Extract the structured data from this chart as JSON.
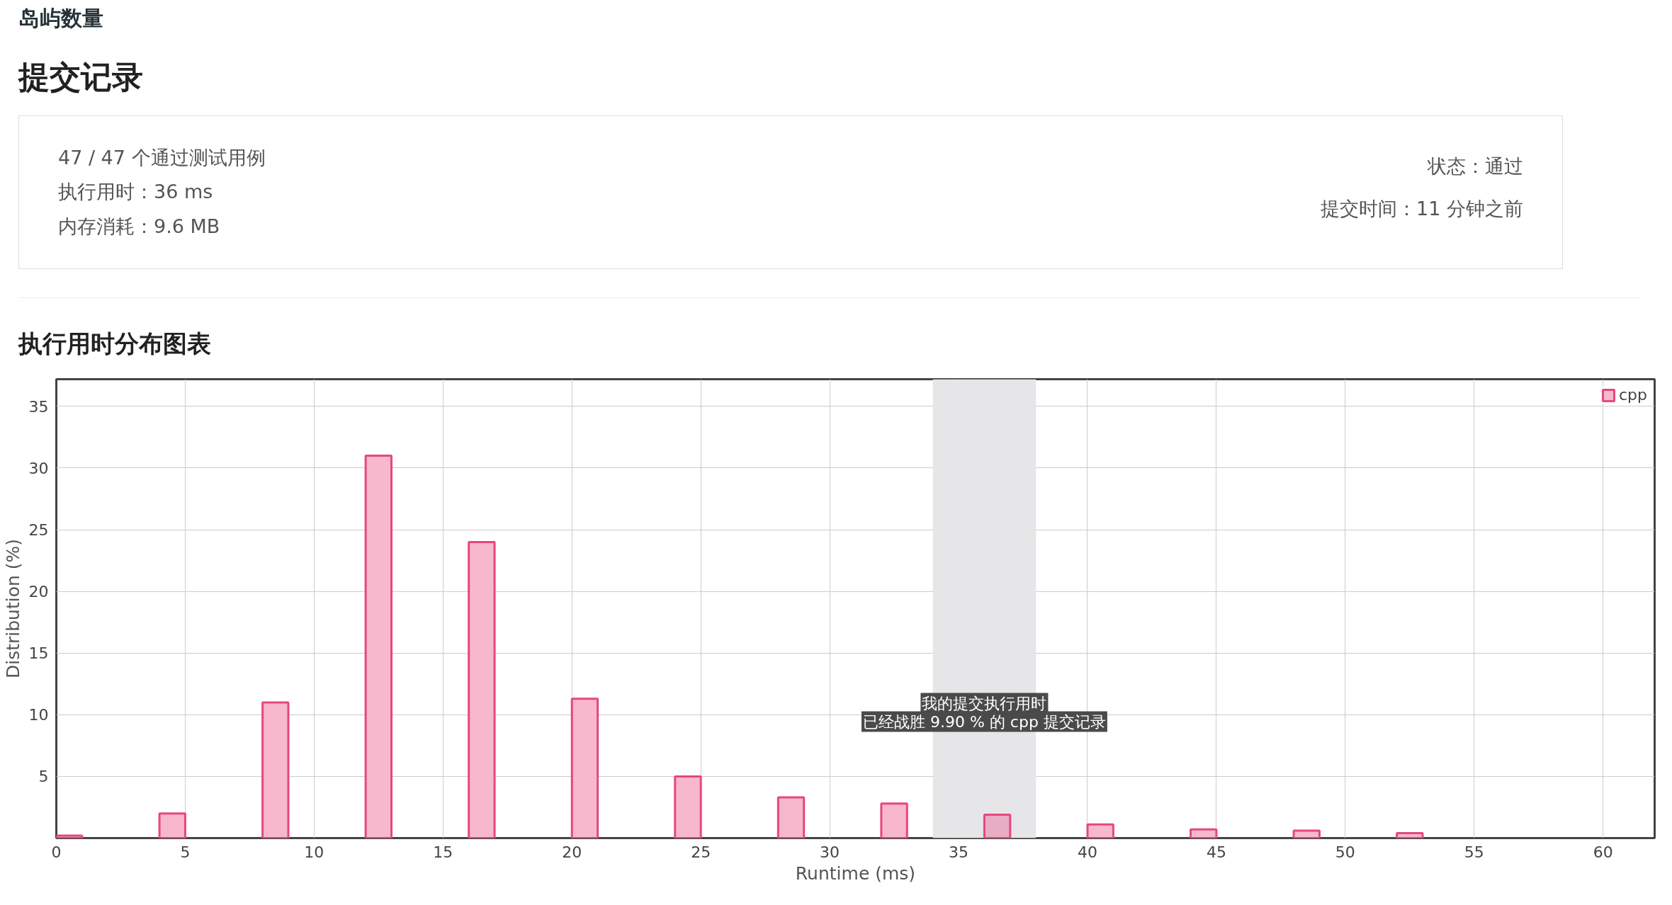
{
  "chart_data": {
    "type": "bar",
    "title": "执行用时分布图表",
    "subtitle": "提交记录",
    "annotations": [
      "岛屿数量",
      "47 / 47 个通过测试用例",
      "执行用时：36 ms",
      "内存消耗：9.6 MB",
      "状态：通过",
      "提交时间：11 分钟之前",
      "我的提交执行用时",
      "已经战胜 9.90 % 的 cpp 提交记录"
    ],
    "xlabel": "Runtime (ms)",
    "ylabel": "Distribution (%)",
    "x": [
      0.5,
      4.5,
      8.5,
      12.5,
      16.5,
      20.5,
      24.5,
      28.5,
      32.5,
      36.5,
      40.5,
      44.5,
      48.5,
      52.5
    ],
    "series": [
      {
        "name": "cpp",
        "color": "#e8477a",
        "values": [
          0.2,
          2,
          11,
          31,
          24,
          11.3,
          5,
          3.3,
          2.8,
          1.9,
          1.1,
          0.7,
          0.6,
          0.4
        ],
        "colors": [
          "#f7b8cd",
          "#f7b8cd",
          "#f7b8cd",
          "#f7b8cd",
          "#f7b8cd",
          "#f7b8cd",
          "#f7b8cd",
          "#f7b8cd",
          "#f7b8cd",
          "#e9adc3",
          "#f7b8cd",
          "#f7b8cd",
          "#f7b8cd",
          "#f7b8cd"
        ]
      }
    ],
    "bands": [
      {
        "axis": "x",
        "from": 34,
        "to": 38,
        "color": "#e6e6e8"
      }
    ],
    "xlim": [
      0,
      62
    ],
    "ylim": [
      0,
      37.2
    ],
    "xticks": [
      0,
      5,
      10,
      15,
      20,
      25,
      30,
      35,
      40,
      45,
      50,
      55,
      60
    ],
    "yticks": [
      5,
      10,
      15,
      20,
      25,
      30,
      35
    ],
    "grid": true,
    "legend": "top right"
  }
}
